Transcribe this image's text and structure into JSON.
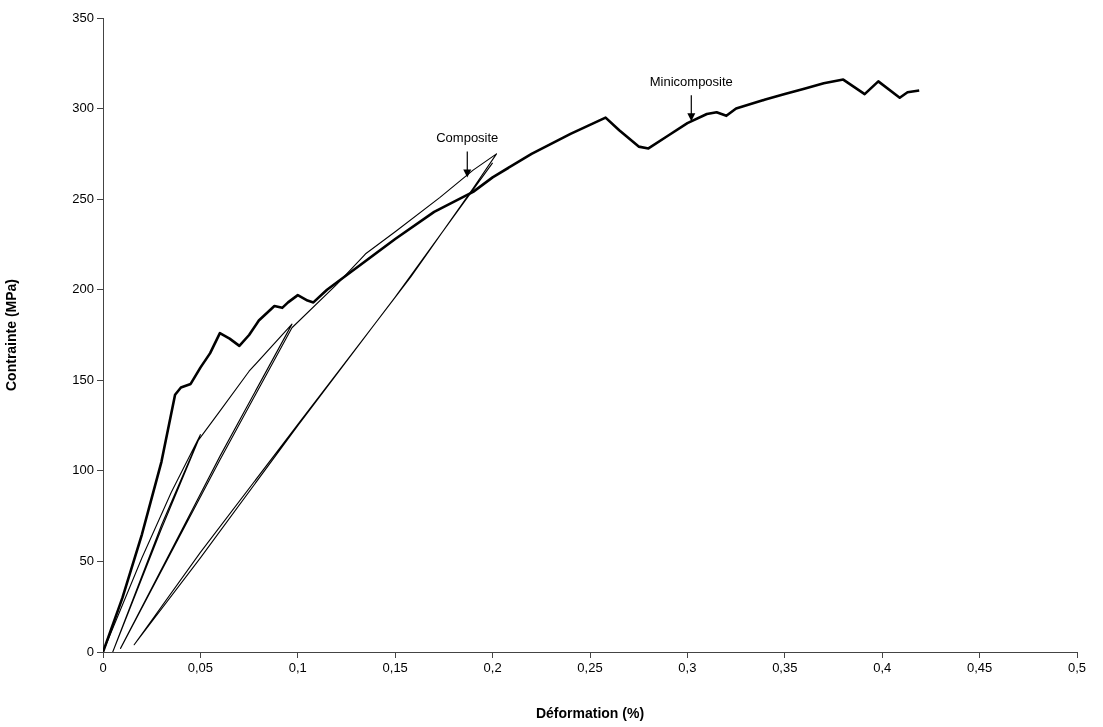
{
  "chart_data": {
    "type": "line",
    "xlabel": "Déformation (%)",
    "ylabel": "Contrainte (MPa)",
    "xlim": [
      0,
      0.5
    ],
    "xticks": [
      0,
      {
        "value": 0.05,
        "label": "0,05"
      },
      {
        "value": 0.1,
        "label": "0,1"
      },
      {
        "value": 0.15,
        "label": "0,15"
      },
      {
        "value": 0.2,
        "label": "0,2"
      },
      {
        "value": 0.25,
        "label": "0,25"
      },
      {
        "value": 0.3,
        "label": "0,3"
      },
      {
        "value": 0.35,
        "label": "0,35"
      },
      {
        "value": 0.4,
        "label": "0,4"
      },
      {
        "value": 0.45,
        "label": "0,45"
      },
      {
        "value": 0.5,
        "label": "0,5"
      }
    ],
    "ylim": [
      0,
      350
    ],
    "yticks": [
      0,
      50,
      100,
      150,
      200,
      250,
      300,
      350
    ],
    "grid": false,
    "legend": false,
    "marker": "none",
    "line_style": "solid",
    "series": [
      {
        "color": "#000000",
        "x": [
          0,
          0.01,
          0.02,
          0.03,
          0.037,
          0.04,
          0.045,
          0.05,
          0.055,
          0.06,
          0.065,
          0.07,
          0.075,
          0.08,
          0.088,
          0.092,
          0.095,
          0.1,
          0.105,
          0.108,
          0.115,
          0.13,
          0.15,
          0.17,
          0.19,
          0.2,
          0.22,
          0.24,
          0.258,
          0.265,
          0.275,
          0.28,
          0.29,
          0.3,
          0.31,
          0.315,
          0.32,
          0.325,
          0.34,
          0.35,
          0.36,
          0.37,
          0.38,
          0.391,
          0.398,
          0.409,
          0.413,
          0.419
        ],
        "values": [
          0,
          30,
          65,
          105,
          142,
          146,
          148,
          157,
          165,
          176,
          173,
          169,
          175,
          183,
          191,
          190,
          193,
          197,
          194,
          193,
          200,
          212,
          228,
          243,
          254,
          262,
          275,
          286,
          295,
          288,
          279,
          278,
          285,
          292,
          297,
          298,
          296,
          300,
          305,
          308,
          311,
          314,
          316,
          308,
          315,
          306,
          309,
          310
        ]
      },
      {
        "color": "#000000",
        "x": [
          0,
          0.02,
          0.035,
          0.05,
          0.03,
          0.005,
          0.03,
          0.049,
          0.06,
          0.075,
          0.097,
          0.06,
          0.009,
          0.06,
          0.097,
          0.12,
          0.135,
          0.15,
          0.173,
          0.19,
          0.202,
          0.19,
          0.158,
          0.101,
          0.05,
          0.016,
          0.05,
          0.1,
          0.15,
          0.2
        ],
        "values": [
          0,
          52,
          88,
          120,
          70,
          0,
          68,
          117,
          133,
          155,
          181,
          108,
          2,
          106,
          179,
          203,
          220,
          232,
          251,
          266,
          275,
          256,
          207,
          127,
          55,
          4,
          52,
          125,
          196,
          270
        ]
      }
    ],
    "annotations": [
      {
        "text": "Composite",
        "x": 0.187,
        "y": 262
      },
      {
        "text": "Minicomposite",
        "x": 0.302,
        "y": 293
      }
    ]
  }
}
